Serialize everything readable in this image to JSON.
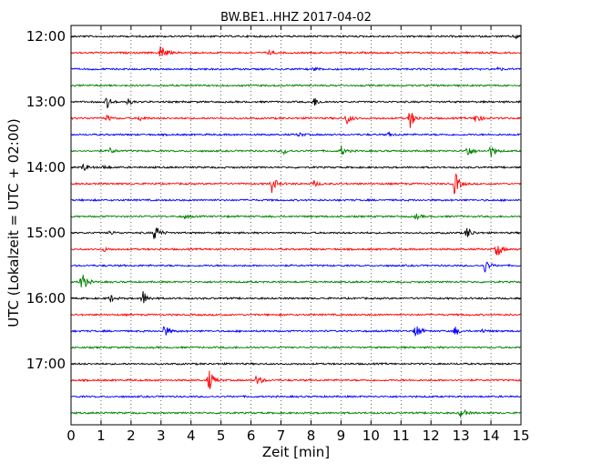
{
  "chart_data": {
    "type": "line",
    "title": "BW.BE1..HHZ 2017-04-02",
    "xlabel": "Zeit  [min]",
    "ylabel": "UTC (Lokalzeit = UTC + 02:00)",
    "xlim": [
      0,
      15
    ],
    "x_ticks": [
      0,
      1,
      2,
      3,
      4,
      5,
      6,
      7,
      8,
      9,
      10,
      11,
      12,
      13,
      14,
      15
    ],
    "y_ticks": [
      "12:00",
      "13:00",
      "14:00",
      "15:00",
      "16:00",
      "17:00"
    ],
    "grid": "vertical dotted",
    "trace_colors": [
      "#000000",
      "#ff0000",
      "#0000ff",
      "#008000"
    ],
    "traces": [
      {
        "start": "12:00",
        "color": "#000000",
        "events": [
          {
            "t": 14.8,
            "amp": 0.25
          }
        ]
      },
      {
        "start": "12:15",
        "color": "#ff0000",
        "events": [
          {
            "t": 3.0,
            "amp": 1.0
          },
          {
            "t": 6.6,
            "amp": 0.2
          }
        ]
      },
      {
        "start": "12:30",
        "color": "#0000ff",
        "events": [
          {
            "t": 8.1,
            "amp": 0.2
          },
          {
            "t": 14.2,
            "amp": 0.2
          }
        ]
      },
      {
        "start": "12:45",
        "color": "#008000",
        "events": []
      },
      {
        "start": "13:00",
        "color": "#000000",
        "events": [
          {
            "t": 1.2,
            "amp": 0.6
          },
          {
            "t": 1.9,
            "amp": 0.3
          },
          {
            "t": 8.1,
            "amp": 0.5
          }
        ]
      },
      {
        "start": "13:15",
        "color": "#ff0000",
        "events": [
          {
            "t": 1.2,
            "amp": 0.3
          },
          {
            "t": 2.3,
            "amp": 0.25
          },
          {
            "t": 9.2,
            "amp": 0.6
          },
          {
            "t": 11.3,
            "amp": 1.0
          },
          {
            "t": 13.5,
            "amp": 0.6
          }
        ]
      },
      {
        "start": "13:30",
        "color": "#0000ff",
        "events": [
          {
            "t": 7.6,
            "amp": 0.2
          },
          {
            "t": 10.6,
            "amp": 0.2
          }
        ]
      },
      {
        "start": "13:45",
        "color": "#008000",
        "events": [
          {
            "t": 1.3,
            "amp": 0.3
          },
          {
            "t": 7.1,
            "amp": 0.3
          },
          {
            "t": 9.0,
            "amp": 0.5
          },
          {
            "t": 13.2,
            "amp": 0.8
          },
          {
            "t": 14.0,
            "amp": 0.6
          }
        ]
      },
      {
        "start": "14:00",
        "color": "#000000",
        "events": [
          {
            "t": 0.4,
            "amp": 0.4
          },
          {
            "t": 1.1,
            "amp": 0.2
          }
        ]
      },
      {
        "start": "14:15",
        "color": "#ff0000",
        "events": [
          {
            "t": 6.7,
            "amp": 0.9
          },
          {
            "t": 8.1,
            "amp": 0.3
          },
          {
            "t": 12.8,
            "amp": 1.3
          }
        ]
      },
      {
        "start": "14:30",
        "color": "#0000ff",
        "events": []
      },
      {
        "start": "14:45",
        "color": "#008000",
        "events": [
          {
            "t": 3.8,
            "amp": 0.2
          },
          {
            "t": 11.5,
            "amp": 0.3
          }
        ]
      },
      {
        "start": "15:00",
        "color": "#000000",
        "events": [
          {
            "t": 1.3,
            "amp": 0.2
          },
          {
            "t": 2.8,
            "amp": 1.0
          },
          {
            "t": 13.2,
            "amp": 0.7
          }
        ]
      },
      {
        "start": "15:15",
        "color": "#ff0000",
        "events": [
          {
            "t": 1.1,
            "amp": 0.2
          },
          {
            "t": 14.2,
            "amp": 0.9
          }
        ]
      },
      {
        "start": "15:30",
        "color": "#0000ff",
        "events": [
          {
            "t": 13.8,
            "amp": 0.7
          }
        ]
      },
      {
        "start": "15:45",
        "color": "#008000",
        "events": [
          {
            "t": 0.35,
            "amp": 1.2
          }
        ]
      },
      {
        "start": "16:00",
        "color": "#000000",
        "events": [
          {
            "t": 1.3,
            "amp": 0.4
          },
          {
            "t": 2.4,
            "amp": 0.8
          }
        ]
      },
      {
        "start": "16:15",
        "color": "#ff0000",
        "events": []
      },
      {
        "start": "16:30",
        "color": "#0000ff",
        "events": [
          {
            "t": 3.1,
            "amp": 0.7
          },
          {
            "t": 11.5,
            "amp": 0.8
          },
          {
            "t": 12.8,
            "amp": 0.5
          },
          {
            "t": 13.7,
            "amp": 0.2
          }
        ]
      },
      {
        "start": "16:45",
        "color": "#008000",
        "events": []
      },
      {
        "start": "17:00",
        "color": "#000000",
        "events": []
      },
      {
        "start": "17:15",
        "color": "#ff0000",
        "events": [
          {
            "t": 4.6,
            "amp": 1.2
          },
          {
            "t": 6.2,
            "amp": 0.6
          }
        ]
      },
      {
        "start": "17:30",
        "color": "#0000ff",
        "events": []
      },
      {
        "start": "17:45",
        "color": "#008000",
        "events": [
          {
            "t": 13.0,
            "amp": 0.6
          }
        ]
      }
    ]
  }
}
